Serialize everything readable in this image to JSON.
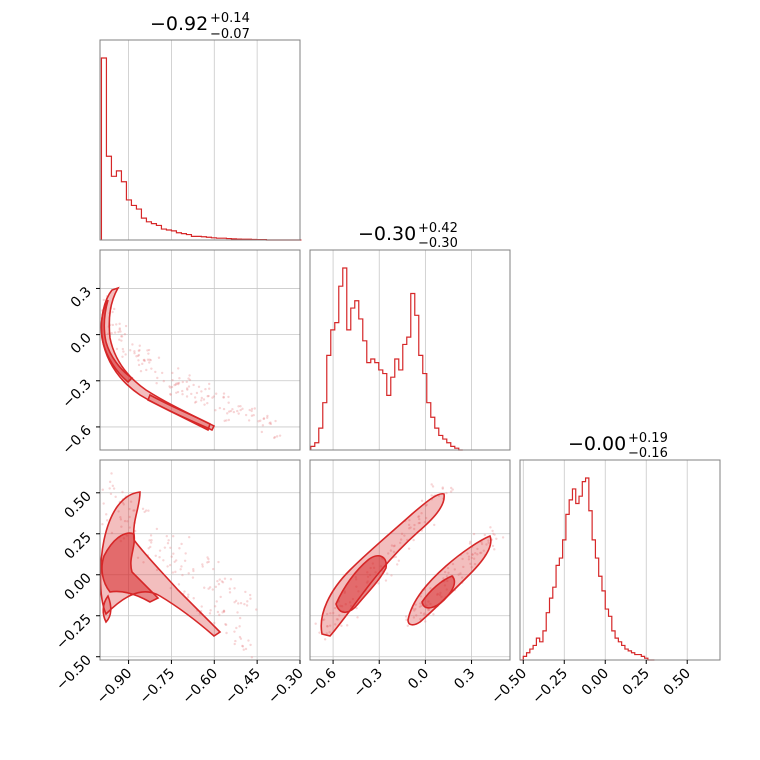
{
  "chart_data": {
    "type": "corner",
    "color": "#d62728",
    "parameters": [
      {
        "title_main": "−0.92",
        "title_plus": "+0.14",
        "title_minus": "−0.07",
        "range": [
          -1.0,
          -0.3
        ],
        "ticks": [
          -0.9,
          -0.75,
          -0.6,
          -0.45,
          -0.3
        ],
        "tick_labels": [
          "−0.90",
          "−0.75",
          "−0.60",
          "−0.45",
          "−0.30"
        ]
      },
      {
        "title_main": "−0.30",
        "title_plus": "+0.42",
        "title_minus": "−0.30",
        "range": [
          -0.75,
          0.55
        ],
        "ticks": [
          -0.6,
          -0.3,
          0.0,
          0.3
        ],
        "tick_labels": [
          "−0.6",
          "−0.3",
          "0.0",
          "0.3"
        ]
      },
      {
        "title_main": "−0.00",
        "title_plus": "+0.19",
        "title_minus": "−0.16",
        "range": [
          -0.52,
          0.7
        ],
        "ticks": [
          -0.5,
          -0.25,
          0.0,
          0.25,
          0.5
        ],
        "tick_labels": [
          "−0.50",
          "−0.25",
          "0.00",
          "0.25",
          "0.50"
        ]
      }
    ],
    "row_tick_labels": {
      "row1": {
        "ticks": [
          0.3,
          0.0,
          -0.3,
          -0.6
        ],
        "labels": [
          "0.3",
          "0.0",
          "−0.3",
          "−0.6"
        ]
      },
      "row2": {
        "ticks": [
          0.5,
          0.25,
          0.0,
          -0.25,
          -0.5
        ],
        "labels": [
          "0.50",
          "0.25",
          "0.00",
          "−0.25",
          "−0.50"
        ]
      }
    },
    "histograms": [
      {
        "x0": -0.995,
        "bin": 0.0175,
        "values": [
          1.0,
          0.46,
          0.35,
          0.38,
          0.32,
          0.22,
          0.19,
          0.17,
          0.12,
          0.1,
          0.09,
          0.08,
          0.06,
          0.055,
          0.05,
          0.04,
          0.035,
          0.03,
          0.02,
          0.02,
          0.018,
          0.015,
          0.012,
          0.01,
          0.01,
          0.008,
          0.006,
          0.005,
          0.004,
          0.004,
          0.003,
          0.002,
          0.002,
          0.0,
          0.0,
          0.0,
          0.0,
          0.0,
          0.0,
          0.0
        ]
      },
      {
        "x0": -0.745,
        "bin": 0.026,
        "values": [
          0.02,
          0.04,
          0.12,
          0.26,
          0.52,
          0.66,
          0.7,
          0.9,
          1.0,
          0.66,
          0.78,
          0.82,
          0.72,
          0.6,
          0.48,
          0.5,
          0.48,
          0.44,
          0.42,
          0.3,
          0.4,
          0.5,
          0.44,
          0.58,
          0.62,
          0.86,
          0.74,
          0.52,
          0.42,
          0.26,
          0.18,
          0.12,
          0.08,
          0.06,
          0.04,
          0.02,
          0.01,
          0.0
        ]
      },
      {
        "x0": -0.52,
        "bin": 0.02,
        "values": [
          0.0,
          0.02,
          0.04,
          0.06,
          0.08,
          0.12,
          0.1,
          0.16,
          0.26,
          0.34,
          0.4,
          0.52,
          0.56,
          0.66,
          0.8,
          0.88,
          0.94,
          0.86,
          0.9,
          0.98,
          1.0,
          0.82,
          0.66,
          0.56,
          0.46,
          0.38,
          0.28,
          0.24,
          0.16,
          0.12,
          0.1,
          0.08,
          0.06,
          0.05,
          0.04,
          0.03,
          0.03,
          0.02,
          0.01,
          0.0,
          0.0
        ]
      }
    ]
  }
}
